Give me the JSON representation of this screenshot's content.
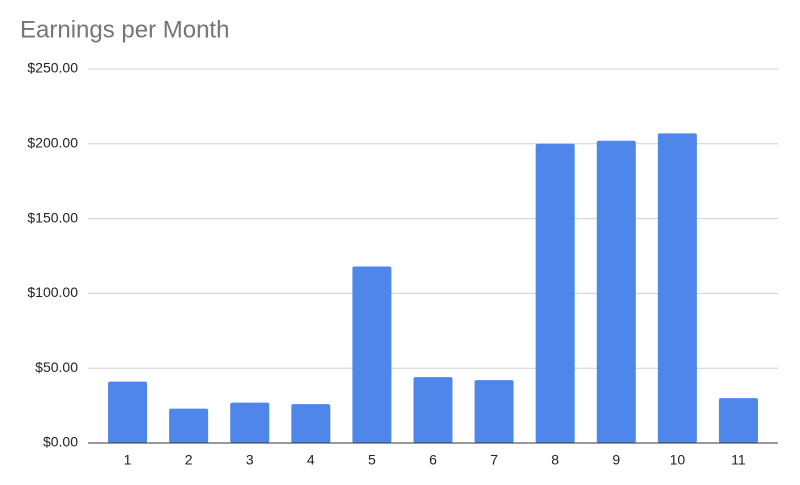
{
  "chart_data": {
    "type": "bar",
    "title": "Earnings per Month",
    "categories": [
      "1",
      "2",
      "3",
      "4",
      "5",
      "6",
      "7",
      "8",
      "9",
      "10",
      "11"
    ],
    "values": [
      41,
      23,
      27,
      26,
      118,
      44,
      42,
      200,
      202,
      207,
      30
    ],
    "color": "#4e86ea",
    "ylim": [
      0,
      250
    ],
    "yticks": [
      {
        "value": 0,
        "label": "$0.00"
      },
      {
        "value": 50,
        "label": "$50.00"
      },
      {
        "value": 100,
        "label": "$100.00"
      },
      {
        "value": 150,
        "label": "$150.00"
      },
      {
        "value": 200,
        "label": "$200.00"
      },
      {
        "value": 250,
        "label": "$250.00"
      }
    ],
    "grid": true
  }
}
